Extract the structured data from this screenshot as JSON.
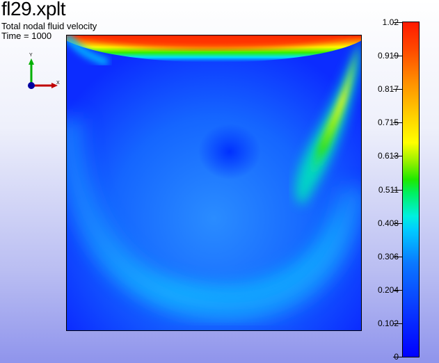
{
  "plot": {
    "title": "fl29.xplt",
    "subtitle": "Total nodal fluid velocity",
    "time_label": "Time = 1000"
  },
  "axes_triad": {
    "x_label": "X",
    "y_label": "Y",
    "x_color": "#c00000",
    "y_color": "#00b000",
    "z_color": "#0000a0"
  },
  "colorbar": {
    "min": 0,
    "max": 1.02,
    "labels": [
      "1.02",
      "0.919",
      "0.817",
      "0.715",
      "0.613",
      "0.511",
      "0.408",
      "0.306",
      "0.204",
      "0.102",
      "0"
    ],
    "colormap": [
      "#0000ff",
      "#0a78ff",
      "#00ccff",
      "#00f060",
      "#90f000",
      "#ffff00",
      "#ff9000",
      "#ff1a00"
    ]
  }
}
